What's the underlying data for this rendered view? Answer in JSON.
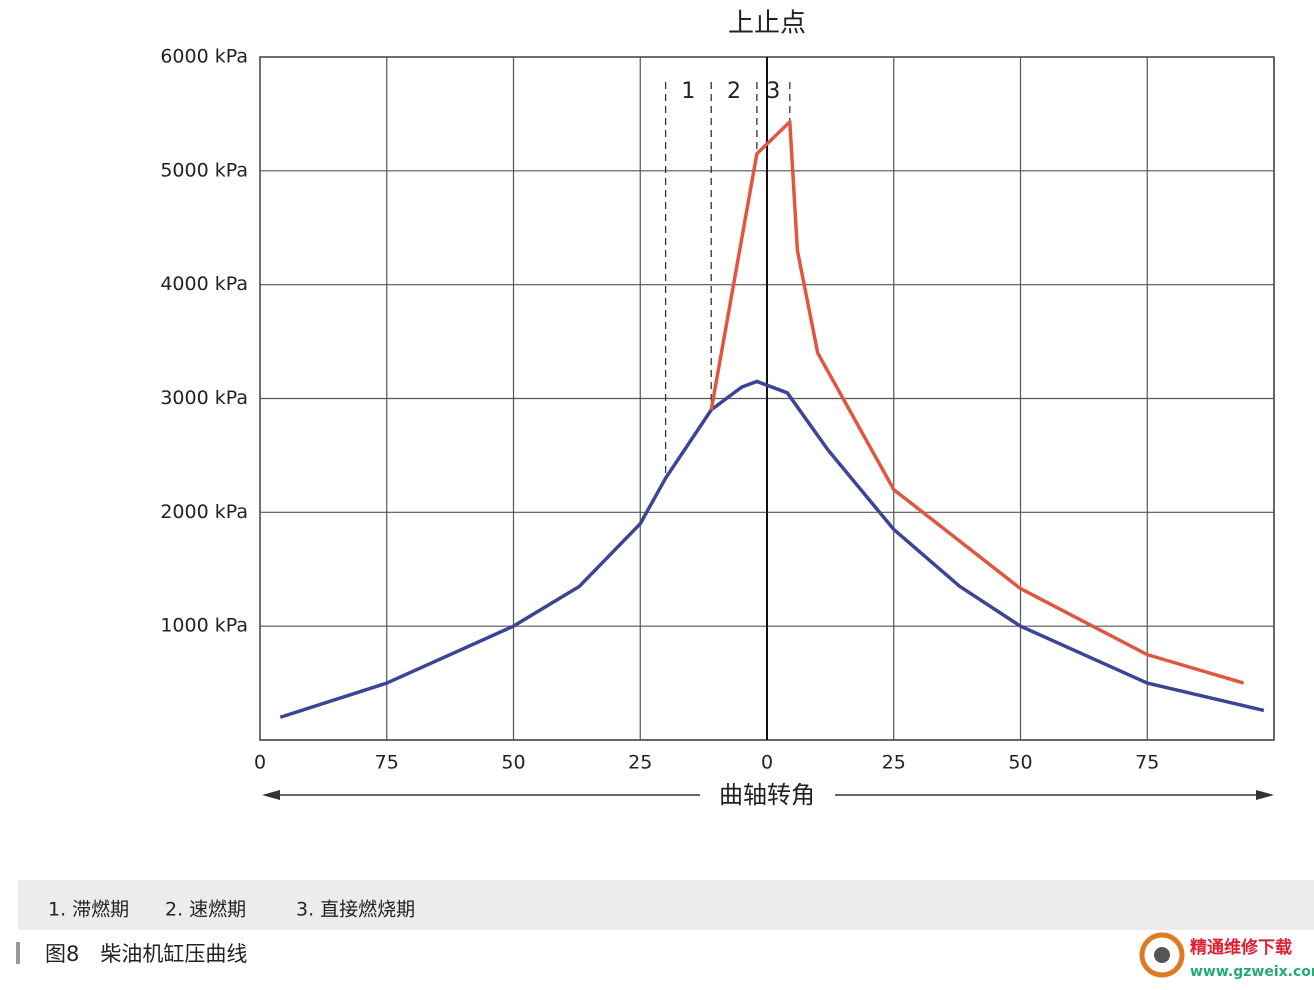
{
  "chart_data": {
    "type": "line",
    "title": "上止点",
    "x_label": "曲轴转角",
    "xlim": [
      -100,
      100
    ],
    "xticks": [
      {
        "value": -100,
        "label": "0"
      },
      {
        "value": -75,
        "label": "75"
      },
      {
        "value": -50,
        "label": "50"
      },
      {
        "value": -25,
        "label": "25"
      },
      0,
      25,
      50,
      75
    ],
    "ylim": [
      0,
      6000
    ],
    "yticks": [
      {
        "value": 1000,
        "label": "1000 kPa"
      },
      {
        "value": 2000,
        "label": "2000 kPa"
      },
      {
        "value": 3000,
        "label": "3000 kPa"
      },
      {
        "value": 4000,
        "label": "4000 kPa"
      },
      {
        "value": 5000,
        "label": "5000 kPa"
      },
      {
        "value": 6000,
        "label": "6000 kPa"
      }
    ],
    "grid": true,
    "series": [
      {
        "color": "#3b4496",
        "x": [
          -96,
          -75,
          -50,
          -37,
          -25,
          -20,
          -11,
          -5,
          -2,
          4,
          12,
          25,
          38,
          50,
          75,
          98
        ],
        "values": [
          200,
          500,
          1000,
          1350,
          1900,
          2300,
          2900,
          3100,
          3150,
          3050,
          2550,
          1850,
          1350,
          1000,
          500,
          260
        ]
      },
      {
        "color": "#e0573f",
        "x": [
          -11,
          -2,
          4.5,
          6,
          10,
          25,
          50,
          75,
          94
        ],
        "values": [
          2900,
          5150,
          5430,
          4300,
          3400,
          2200,
          1330,
          750,
          500
        ]
      }
    ],
    "phase_lines": [
      -20,
      -11,
      -2,
      4.5
    ],
    "phase_labels": [
      "1",
      "2",
      "3"
    ],
    "legend_notes": [
      "1. 滞燃期",
      "2. 速燃期",
      "3. 直接燃烧期"
    ],
    "caption": "图8　柴油机缸压曲线"
  },
  "watermark": {
    "title": "精通维修下载",
    "url": "www.gzweix.com"
  }
}
